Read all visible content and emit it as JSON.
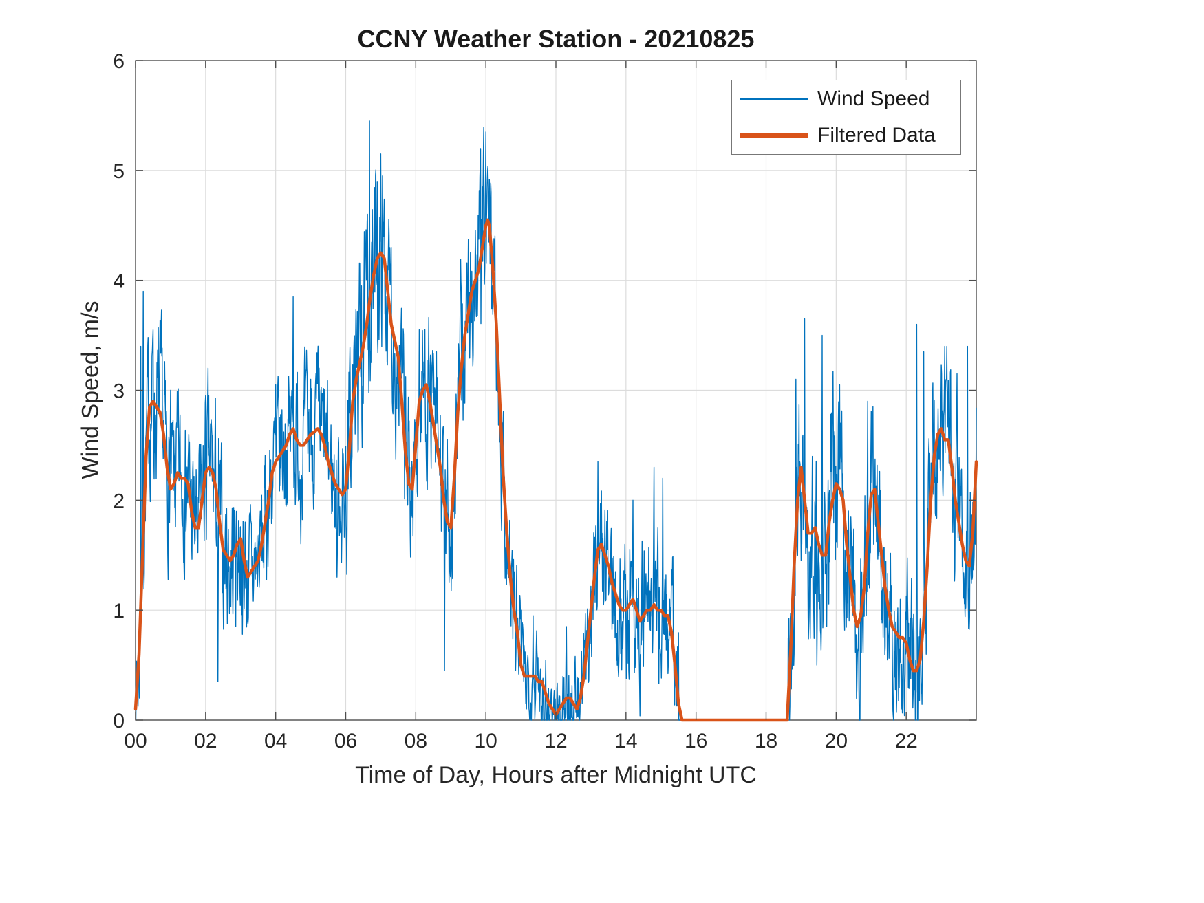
{
  "chart_data": {
    "type": "line",
    "title": "CCNY Weather Station - 20210825",
    "xlabel": "Time of Day, Hours after Midnight UTC",
    "ylabel": "Wind Speed, m/s",
    "xlim": [
      0,
      24
    ],
    "ylim": [
      0,
      6
    ],
    "grid": true,
    "xticks": {
      "values": [
        0,
        2,
        4,
        6,
        8,
        10,
        12,
        14,
        16,
        18,
        20,
        22
      ],
      "labels": [
        "00",
        "02",
        "04",
        "06",
        "08",
        "10",
        "12",
        "14",
        "16",
        "18",
        "20",
        "22"
      ]
    },
    "yticks": {
      "values": [
        0,
        1,
        2,
        3,
        4,
        5,
        6
      ],
      "labels": [
        "0",
        "1",
        "2",
        "3",
        "4",
        "5",
        "6"
      ]
    },
    "colors": {
      "blue": "#0072BD",
      "orange": "#D95319",
      "grid": "#dcdcdc",
      "axis": "#4d4d4d",
      "text": "#262626"
    },
    "legend": {
      "position": "northeast",
      "entries": [
        {
          "label": "Wind Speed",
          "color": "#0072BD",
          "sample_thickness": 2
        },
        {
          "label": "Filtered Data",
          "color": "#D95319",
          "sample_thickness": 6
        }
      ]
    },
    "series": [
      {
        "name": "Wind Speed",
        "color": "#0072BD",
        "linewidth": 1.4,
        "generation": {
          "basis": "filtered_plus_noise",
          "sample_step_hours": 0.01,
          "ar_coeff": 0.55,
          "seed": 7,
          "amp_per_hour": [
            0.55,
            0.5,
            0.55,
            0.45,
            0.5,
            0.45,
            0.65,
            0.6,
            0.55,
            0.6,
            0.5,
            0.3,
            0.3,
            0.45,
            0.55,
            0.5,
            0,
            0,
            0.55,
            0.65,
            0.6,
            0.55,
            0.6,
            0.55
          ],
          "zero_gap_hours": [
            15.52,
            18.63
          ],
          "spikes": [
            [
              0.15,
              3.4
            ],
            [
              0.22,
              3.9
            ],
            [
              0.5,
              3.55
            ],
            [
              1.0,
              3.0
            ],
            [
              2.0,
              2.95
            ],
            [
              2.35,
              0.35
            ],
            [
              3.05,
              0.78
            ],
            [
              4.0,
              3.05
            ],
            [
              4.5,
              3.85
            ],
            [
              5.0,
              3.1
            ],
            [
              5.75,
              1.3
            ],
            [
              6.45,
              3.95
            ],
            [
              6.68,
              5.45
            ],
            [
              6.9,
              4.9
            ],
            [
              7.05,
              4.95
            ],
            [
              7.3,
              4.3
            ],
            [
              8.1,
              3.55
            ],
            [
              8.82,
              0.45
            ],
            [
              9.3,
              3.9
            ],
            [
              9.85,
              5.2
            ],
            [
              10.0,
              5.35
            ],
            [
              10.15,
              4.8
            ],
            [
              11.0,
              1.0
            ],
            [
              11.35,
              0.95
            ],
            [
              12.0,
              0.02
            ],
            [
              12.3,
              0.85
            ],
            [
              13.2,
              2.35
            ],
            [
              14.2,
              2.0
            ],
            [
              14.8,
              2.3
            ],
            [
              15.05,
              2.2
            ],
            [
              18.85,
              3.1
            ],
            [
              19.1,
              3.65
            ],
            [
              19.45,
              0.5
            ],
            [
              19.6,
              3.5
            ],
            [
              20.1,
              3.05
            ],
            [
              20.9,
              2.9
            ],
            [
              21.05,
              2.85
            ],
            [
              22.3,
              3.6
            ],
            [
              22.5,
              3.35
            ],
            [
              23.1,
              3.4
            ],
            [
              23.45,
              3.15
            ],
            [
              23.75,
              3.4
            ]
          ]
        }
      },
      {
        "name": "Filtered Data",
        "color": "#D95319",
        "linewidth": 4.5,
        "points": [
          [
            0,
            0.1
          ],
          [
            0.1,
            0.6
          ],
          [
            0.2,
            1.5
          ],
          [
            0.3,
            2.4
          ],
          [
            0.4,
            2.85
          ],
          [
            0.5,
            2.9
          ],
          [
            0.6,
            2.85
          ],
          [
            0.7,
            2.8
          ],
          [
            0.8,
            2.6
          ],
          [
            0.9,
            2.3
          ],
          [
            1,
            2.1
          ],
          [
            1.1,
            2.15
          ],
          [
            1.2,
            2.25
          ],
          [
            1.3,
            2.2
          ],
          [
            1.4,
            2.2
          ],
          [
            1.5,
            2.15
          ],
          [
            1.6,
            1.9
          ],
          [
            1.7,
            1.75
          ],
          [
            1.8,
            1.75
          ],
          [
            1.9,
            2
          ],
          [
            2,
            2.25
          ],
          [
            2.1,
            2.3
          ],
          [
            2.2,
            2.25
          ],
          [
            2.3,
            2.1
          ],
          [
            2.4,
            1.8
          ],
          [
            2.5,
            1.55
          ],
          [
            2.6,
            1.5
          ],
          [
            2.7,
            1.45
          ],
          [
            2.8,
            1.5
          ],
          [
            2.9,
            1.6
          ],
          [
            3,
            1.65
          ],
          [
            3.1,
            1.45
          ],
          [
            3.2,
            1.3
          ],
          [
            3.3,
            1.35
          ],
          [
            3.4,
            1.4
          ],
          [
            3.5,
            1.45
          ],
          [
            3.6,
            1.6
          ],
          [
            3.7,
            1.8
          ],
          [
            3.8,
            2
          ],
          [
            3.9,
            2.25
          ],
          [
            4,
            2.35
          ],
          [
            4.1,
            2.4
          ],
          [
            4.2,
            2.45
          ],
          [
            4.3,
            2.5
          ],
          [
            4.4,
            2.6
          ],
          [
            4.5,
            2.65
          ],
          [
            4.6,
            2.55
          ],
          [
            4.7,
            2.5
          ],
          [
            4.8,
            2.5
          ],
          [
            4.9,
            2.55
          ],
          [
            5,
            2.6
          ],
          [
            5.1,
            2.62
          ],
          [
            5.2,
            2.65
          ],
          [
            5.3,
            2.6
          ],
          [
            5.4,
            2.5
          ],
          [
            5.5,
            2.35
          ],
          [
            5.6,
            2.25
          ],
          [
            5.7,
            2.15
          ],
          [
            5.8,
            2.1
          ],
          [
            5.9,
            2.05
          ],
          [
            6,
            2.1
          ],
          [
            6.1,
            2.45
          ],
          [
            6.2,
            2.9
          ],
          [
            6.3,
            3.1
          ],
          [
            6.4,
            3.25
          ],
          [
            6.5,
            3.4
          ],
          [
            6.6,
            3.6
          ],
          [
            6.7,
            3.85
          ],
          [
            6.8,
            4.05
          ],
          [
            6.9,
            4.2
          ],
          [
            7,
            4.25
          ],
          [
            7.1,
            4.2
          ],
          [
            7.2,
            3.9
          ],
          [
            7.3,
            3.6
          ],
          [
            7.4,
            3.45
          ],
          [
            7.5,
            3.3
          ],
          [
            7.6,
            2.9
          ],
          [
            7.7,
            2.45
          ],
          [
            7.8,
            2.15
          ],
          [
            7.9,
            2.1
          ],
          [
            8,
            2.5
          ],
          [
            8.1,
            2.9
          ],
          [
            8.2,
            3
          ],
          [
            8.3,
            3.05
          ],
          [
            8.4,
            2.9
          ],
          [
            8.5,
            2.7
          ],
          [
            8.6,
            2.5
          ],
          [
            8.7,
            2.3
          ],
          [
            8.8,
            2
          ],
          [
            8.9,
            1.8
          ],
          [
            9,
            1.75
          ],
          [
            9.1,
            2.2
          ],
          [
            9.2,
            2.8
          ],
          [
            9.3,
            3.2
          ],
          [
            9.4,
            3.5
          ],
          [
            9.5,
            3.7
          ],
          [
            9.6,
            3.9
          ],
          [
            9.7,
            4
          ],
          [
            9.8,
            4.1
          ],
          [
            9.9,
            4.3
          ],
          [
            10,
            4.5
          ],
          [
            10.05,
            4.55
          ],
          [
            10.1,
            4.5
          ],
          [
            10.2,
            4.1
          ],
          [
            10.3,
            3.6
          ],
          [
            10.4,
            2.9
          ],
          [
            10.5,
            2.2
          ],
          [
            10.6,
            1.7
          ],
          [
            10.7,
            1.3
          ],
          [
            10.8,
            1
          ],
          [
            10.9,
            0.8
          ],
          [
            11,
            0.5
          ],
          [
            11.1,
            0.4
          ],
          [
            11.2,
            0.4
          ],
          [
            11.3,
            0.4
          ],
          [
            11.4,
            0.4
          ],
          [
            11.5,
            0.35
          ],
          [
            11.6,
            0.35
          ],
          [
            11.7,
            0.25
          ],
          [
            11.8,
            0.15
          ],
          [
            11.9,
            0.1
          ],
          [
            12,
            0.05
          ],
          [
            12.1,
            0.1
          ],
          [
            12.2,
            0.15
          ],
          [
            12.3,
            0.2
          ],
          [
            12.4,
            0.2
          ],
          [
            12.5,
            0.15
          ],
          [
            12.6,
            0.1
          ],
          [
            12.7,
            0.2
          ],
          [
            12.8,
            0.4
          ],
          [
            12.9,
            0.7
          ],
          [
            13,
            1
          ],
          [
            13.1,
            1.3
          ],
          [
            13.2,
            1.55
          ],
          [
            13.3,
            1.6
          ],
          [
            13.4,
            1.5
          ],
          [
            13.5,
            1.4
          ],
          [
            13.6,
            1.25
          ],
          [
            13.7,
            1.15
          ],
          [
            13.8,
            1.05
          ],
          [
            13.9,
            1
          ],
          [
            14,
            1
          ],
          [
            14.1,
            1.05
          ],
          [
            14.2,
            1.1
          ],
          [
            14.3,
            1
          ],
          [
            14.4,
            0.9
          ],
          [
            14.5,
            0.95
          ],
          [
            14.6,
            1
          ],
          [
            14.7,
            1
          ],
          [
            14.8,
            1.05
          ],
          [
            14.9,
            1
          ],
          [
            15,
            1
          ],
          [
            15.1,
            0.95
          ],
          [
            15.2,
            0.95
          ],
          [
            15.3,
            0.8
          ],
          [
            15.4,
            0.5
          ],
          [
            15.5,
            0.15
          ],
          [
            15.6,
            0
          ],
          [
            16,
            0
          ],
          [
            17,
            0
          ],
          [
            18,
            0
          ],
          [
            18.6,
            0
          ],
          [
            18.7,
            0.6
          ],
          [
            18.8,
            1.4
          ],
          [
            18.9,
            2
          ],
          [
            19,
            2.3
          ],
          [
            19.1,
            2
          ],
          [
            19.2,
            1.7
          ],
          [
            19.3,
            1.7
          ],
          [
            19.4,
            1.75
          ],
          [
            19.5,
            1.6
          ],
          [
            19.6,
            1.5
          ],
          [
            19.7,
            1.5
          ],
          [
            19.8,
            1.8
          ],
          [
            19.9,
            2
          ],
          [
            20,
            2.15
          ],
          [
            20.1,
            2.1
          ],
          [
            20.2,
            2
          ],
          [
            20.3,
            1.6
          ],
          [
            20.4,
            1.3
          ],
          [
            20.5,
            1
          ],
          [
            20.6,
            0.85
          ],
          [
            20.7,
            0.95
          ],
          [
            20.8,
            1.2
          ],
          [
            20.9,
            1.7
          ],
          [
            21,
            2.05
          ],
          [
            21.1,
            2.1
          ],
          [
            21.2,
            1.8
          ],
          [
            21.3,
            1.5
          ],
          [
            21.4,
            1.2
          ],
          [
            21.5,
            1
          ],
          [
            21.6,
            0.85
          ],
          [
            21.7,
            0.8
          ],
          [
            21.8,
            0.75
          ],
          [
            21.9,
            0.75
          ],
          [
            22,
            0.7
          ],
          [
            22.1,
            0.55
          ],
          [
            22.2,
            0.45
          ],
          [
            22.3,
            0.45
          ],
          [
            22.4,
            0.55
          ],
          [
            22.5,
            0.9
          ],
          [
            22.6,
            1.4
          ],
          [
            22.7,
            2
          ],
          [
            22.8,
            2.4
          ],
          [
            22.9,
            2.6
          ],
          [
            23,
            2.65
          ],
          [
            23.1,
            2.55
          ],
          [
            23.2,
            2.55
          ],
          [
            23.3,
            2.3
          ],
          [
            23.4,
            2
          ],
          [
            23.5,
            1.8
          ],
          [
            23.6,
            1.6
          ],
          [
            23.7,
            1.45
          ],
          [
            23.8,
            1.4
          ],
          [
            23.9,
            1.7
          ],
          [
            24,
            2.35
          ]
        ]
      }
    ]
  }
}
